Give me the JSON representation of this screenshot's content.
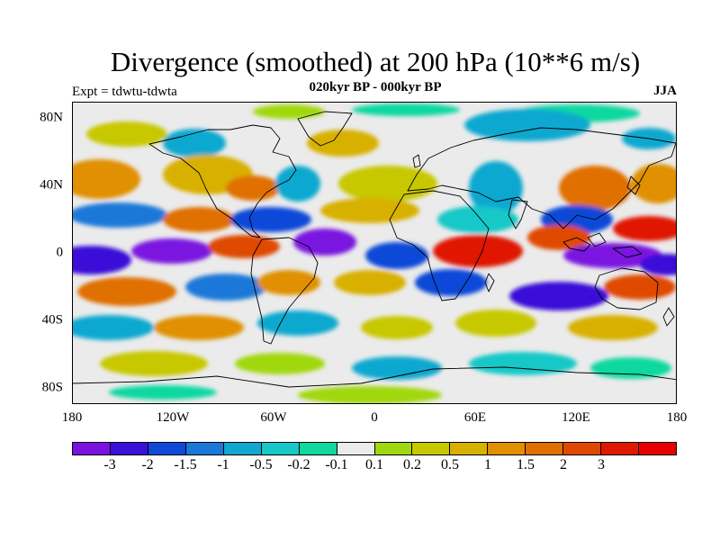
{
  "title": "Divergence (smoothed) at 200 hPa (10**6 m/s)",
  "subtitle": "020kyr BP - 000kyr BP",
  "left_label": "Expt = tdwtu-tdwta",
  "right_label": "JJA",
  "lat_ticks": [
    "80N",
    "40N",
    "0",
    "40S",
    "80S"
  ],
  "lon_ticks": [
    "180",
    "120W",
    "60W",
    "0",
    "60E",
    "120E",
    "180"
  ],
  "colorbar": {
    "colors": [
      "#7a12e0",
      "#3a0fd8",
      "#1048d8",
      "#1a78d8",
      "#10a8d0",
      "#18c8c8",
      "#10d8a0",
      "#ebebeb",
      "#a0d810",
      "#c8c800",
      "#d8b000",
      "#e09000",
      "#e07000",
      "#e04800",
      "#e01800",
      "#e80000"
    ],
    "labels": [
      "-3",
      "-2",
      "-1.5",
      "-1",
      "-0.5",
      "-0.2",
      "-0.1",
      "0.1",
      "0.2",
      "0.5",
      "1",
      "1.5",
      "2",
      "3"
    ]
  },
  "map": {
    "background_color": "#ebebeb",
    "coast_color": "#000000"
  }
}
